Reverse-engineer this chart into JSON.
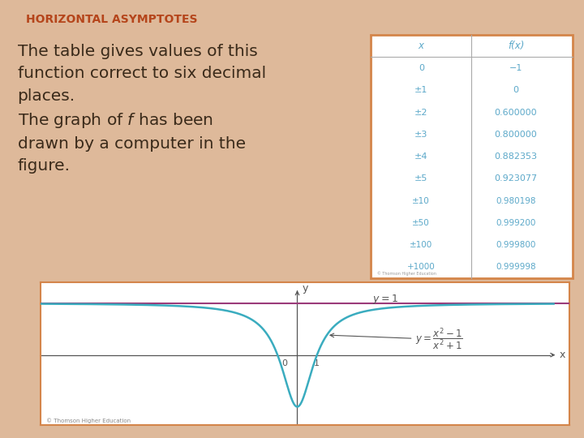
{
  "title": "HORIZONTAL ASYMPTOTES",
  "title_color": "#B5451B",
  "background_color": "#DEB99A",
  "text_color": "#3A2A1A",
  "table_x_labels": [
    "x",
    "0",
    "±1",
    "±2",
    "±3",
    "±4",
    "±5",
    "±10",
    "±50",
    "±100",
    "+1000"
  ],
  "table_fx_labels": [
    "f(x)",
    "−1",
    "0",
    "0.600000",
    "0.800000",
    "0.882353",
    "0.923077",
    "0.980198",
    "0.999200",
    "0.999800",
    "0.999998"
  ],
  "table_border_color": "#D4854A",
  "table_text_color": "#5BA8C9",
  "graph_bg": "#FFFFFF",
  "curve_color": "#3AACBF",
  "asymptote_color": "#9B3B7A",
  "axis_color": "#555555",
  "copyright_text": "© Thomson Higher Education"
}
